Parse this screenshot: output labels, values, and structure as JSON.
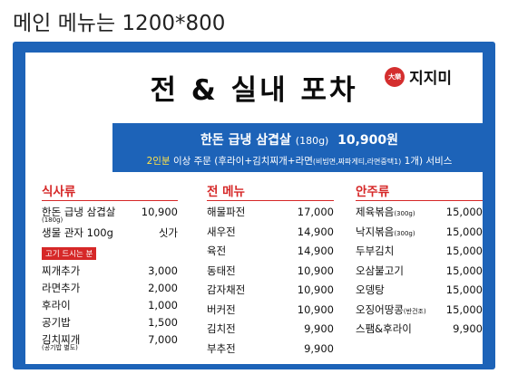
{
  "page_heading": "메인 메뉴는 1200*800",
  "board": {
    "title": "전 & 실내 포차",
    "logo": {
      "seal_text": "大樂",
      "name": "지지미",
      "sub": "전대박"
    },
    "promo": {
      "line1_main": "한돈 급냉 삼겹살",
      "line1_weight": "(180g)",
      "line1_price": "10,900원",
      "line2_highlight": "2인분",
      "line2_text": "이상 주문 (후라이+김치찌개+라면",
      "line2_small": "(비빔면,짜파게티,라면중택1)",
      "line2_end": "1개) 서비스"
    },
    "meals": {
      "header": "식사류",
      "items": [
        {
          "name": "한돈 급냉 삼겹살",
          "price": "10,900",
          "sub": "(180g)"
        },
        {
          "name": "생물 관자 100g",
          "price": "싯가"
        }
      ],
      "badge": "고기 드시는 분",
      "extra_items": [
        {
          "name": "찌개추가",
          "price": "3,000"
        },
        {
          "name": "라면추가",
          "price": "2,000"
        },
        {
          "name": "후라이",
          "price": "1,000"
        },
        {
          "name": "공기밥",
          "price": "1,500"
        },
        {
          "name": "김치찌개",
          "price": "7,000",
          "sub": "(공기밥 별도)"
        }
      ]
    },
    "jeon": {
      "header": "전 메뉴",
      "items": [
        {
          "name": "해물파전",
          "price": "17,000"
        },
        {
          "name": "새우전",
          "price": "14,900"
        },
        {
          "name": "육전",
          "price": "14,900"
        },
        {
          "name": "동태전",
          "price": "10,900"
        },
        {
          "name": "감자채전",
          "price": "10,900"
        },
        {
          "name": "버커전",
          "price": "10,900"
        },
        {
          "name": "김치전",
          "price": "9,900"
        },
        {
          "name": "부추전",
          "price": "9,900"
        }
      ]
    },
    "anju": {
      "header": "안주류",
      "items": [
        {
          "name": "제육볶음",
          "note": "(300g)",
          "price": "15,000"
        },
        {
          "name": "낙지볶음",
          "note": "(300g)",
          "price": "15,000"
        },
        {
          "name": "두부김치",
          "note": "",
          "price": "15,000"
        },
        {
          "name": "오삼불고기",
          "note": "",
          "price": "15,000"
        },
        {
          "name": "오뎅탕",
          "note": "",
          "price": "15,000"
        },
        {
          "name": "오징어땅콩",
          "note": "(반건조)",
          "price": "15,000"
        },
        {
          "name": "스팸&후라이",
          "note": "",
          "price": "9,900"
        }
      ]
    }
  }
}
